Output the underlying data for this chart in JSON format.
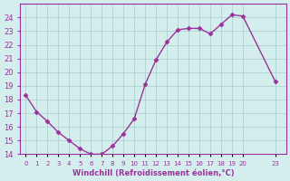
{
  "x": [
    0,
    1,
    2,
    3,
    4,
    5,
    6,
    7,
    8,
    9,
    10,
    11,
    12,
    13,
    14,
    15,
    16,
    17,
    18,
    19,
    20,
    23
  ],
  "y": [
    18.3,
    17.1,
    16.4,
    15.6,
    15.0,
    14.4,
    14.0,
    14.0,
    14.6,
    15.5,
    16.6,
    19.1,
    20.9,
    22.2,
    23.1,
    23.2,
    23.2,
    22.8,
    23.5,
    24.2,
    24.1,
    19.3
  ],
  "line_color": "#993399",
  "marker_color": "#993399",
  "bg_color": "#d4eeee",
  "grid_color": "#aacccc",
  "xlabel": "Windchill (Refroidissement éolien,°C)",
  "xlabel_color": "#993399",
  "ylim": [
    14,
    25
  ],
  "xlim": [
    -0.5,
    24
  ],
  "yticks": [
    14,
    15,
    16,
    17,
    18,
    19,
    20,
    21,
    22,
    23,
    24
  ],
  "xticks": [
    0,
    1,
    2,
    3,
    4,
    5,
    6,
    7,
    8,
    9,
    10,
    11,
    12,
    13,
    14,
    15,
    16,
    17,
    18,
    19,
    20,
    23
  ],
  "xtick_labels": [
    "0",
    "1",
    "2",
    "3",
    "4",
    "5",
    "6",
    "7",
    "8",
    "9",
    "10",
    "11",
    "12",
    "13",
    "14",
    "15",
    "16",
    "17",
    "18",
    "19",
    "20",
    "23"
  ],
  "tick_color": "#993399",
  "spine_color": "#993399"
}
